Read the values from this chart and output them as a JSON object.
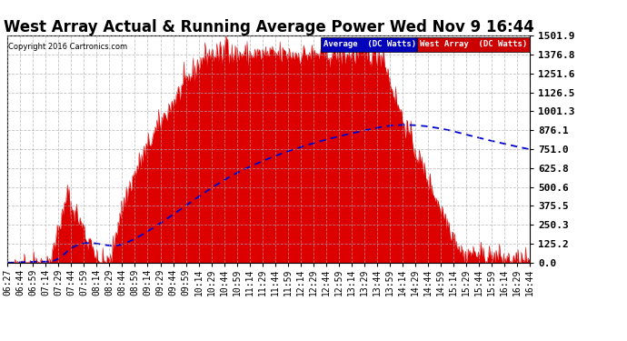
{
  "title": "West Array Actual & Running Average Power Wed Nov 9 16:44",
  "copyright": "Copyright 2016 Cartronics.com",
  "ylabel_right_ticks": [
    0.0,
    125.2,
    250.3,
    375.5,
    500.6,
    625.8,
    751.0,
    876.1,
    1001.3,
    1126.5,
    1251.6,
    1376.8,
    1501.9
  ],
  "ymax": 1501.9,
  "legend_label1": "Average  (DC Watts)",
  "legend_label2": "West Array  (DC Watts)",
  "legend_color1": "#0000bb",
  "legend_color2": "#cc0000",
  "area_color": "#dd0000",
  "line_color": "#0000cc",
  "bg_color": "#ffffff",
  "grid_color": "#aaaaaa",
  "title_fontsize": 12,
  "tick_label_fontsize": 7,
  "x_tick_labels": [
    "06:27",
    "06:44",
    "06:59",
    "07:14",
    "07:29",
    "07:44",
    "07:59",
    "08:14",
    "08:29",
    "08:44",
    "08:59",
    "09:14",
    "09:29",
    "09:44",
    "09:59",
    "10:14",
    "10:29",
    "10:44",
    "10:59",
    "11:14",
    "11:29",
    "11:44",
    "11:59",
    "12:14",
    "12:29",
    "12:44",
    "12:59",
    "13:14",
    "13:29",
    "13:44",
    "13:59",
    "14:14",
    "14:29",
    "14:44",
    "14:59",
    "15:14",
    "15:29",
    "15:44",
    "15:59",
    "16:14",
    "16:29",
    "16:44"
  ]
}
